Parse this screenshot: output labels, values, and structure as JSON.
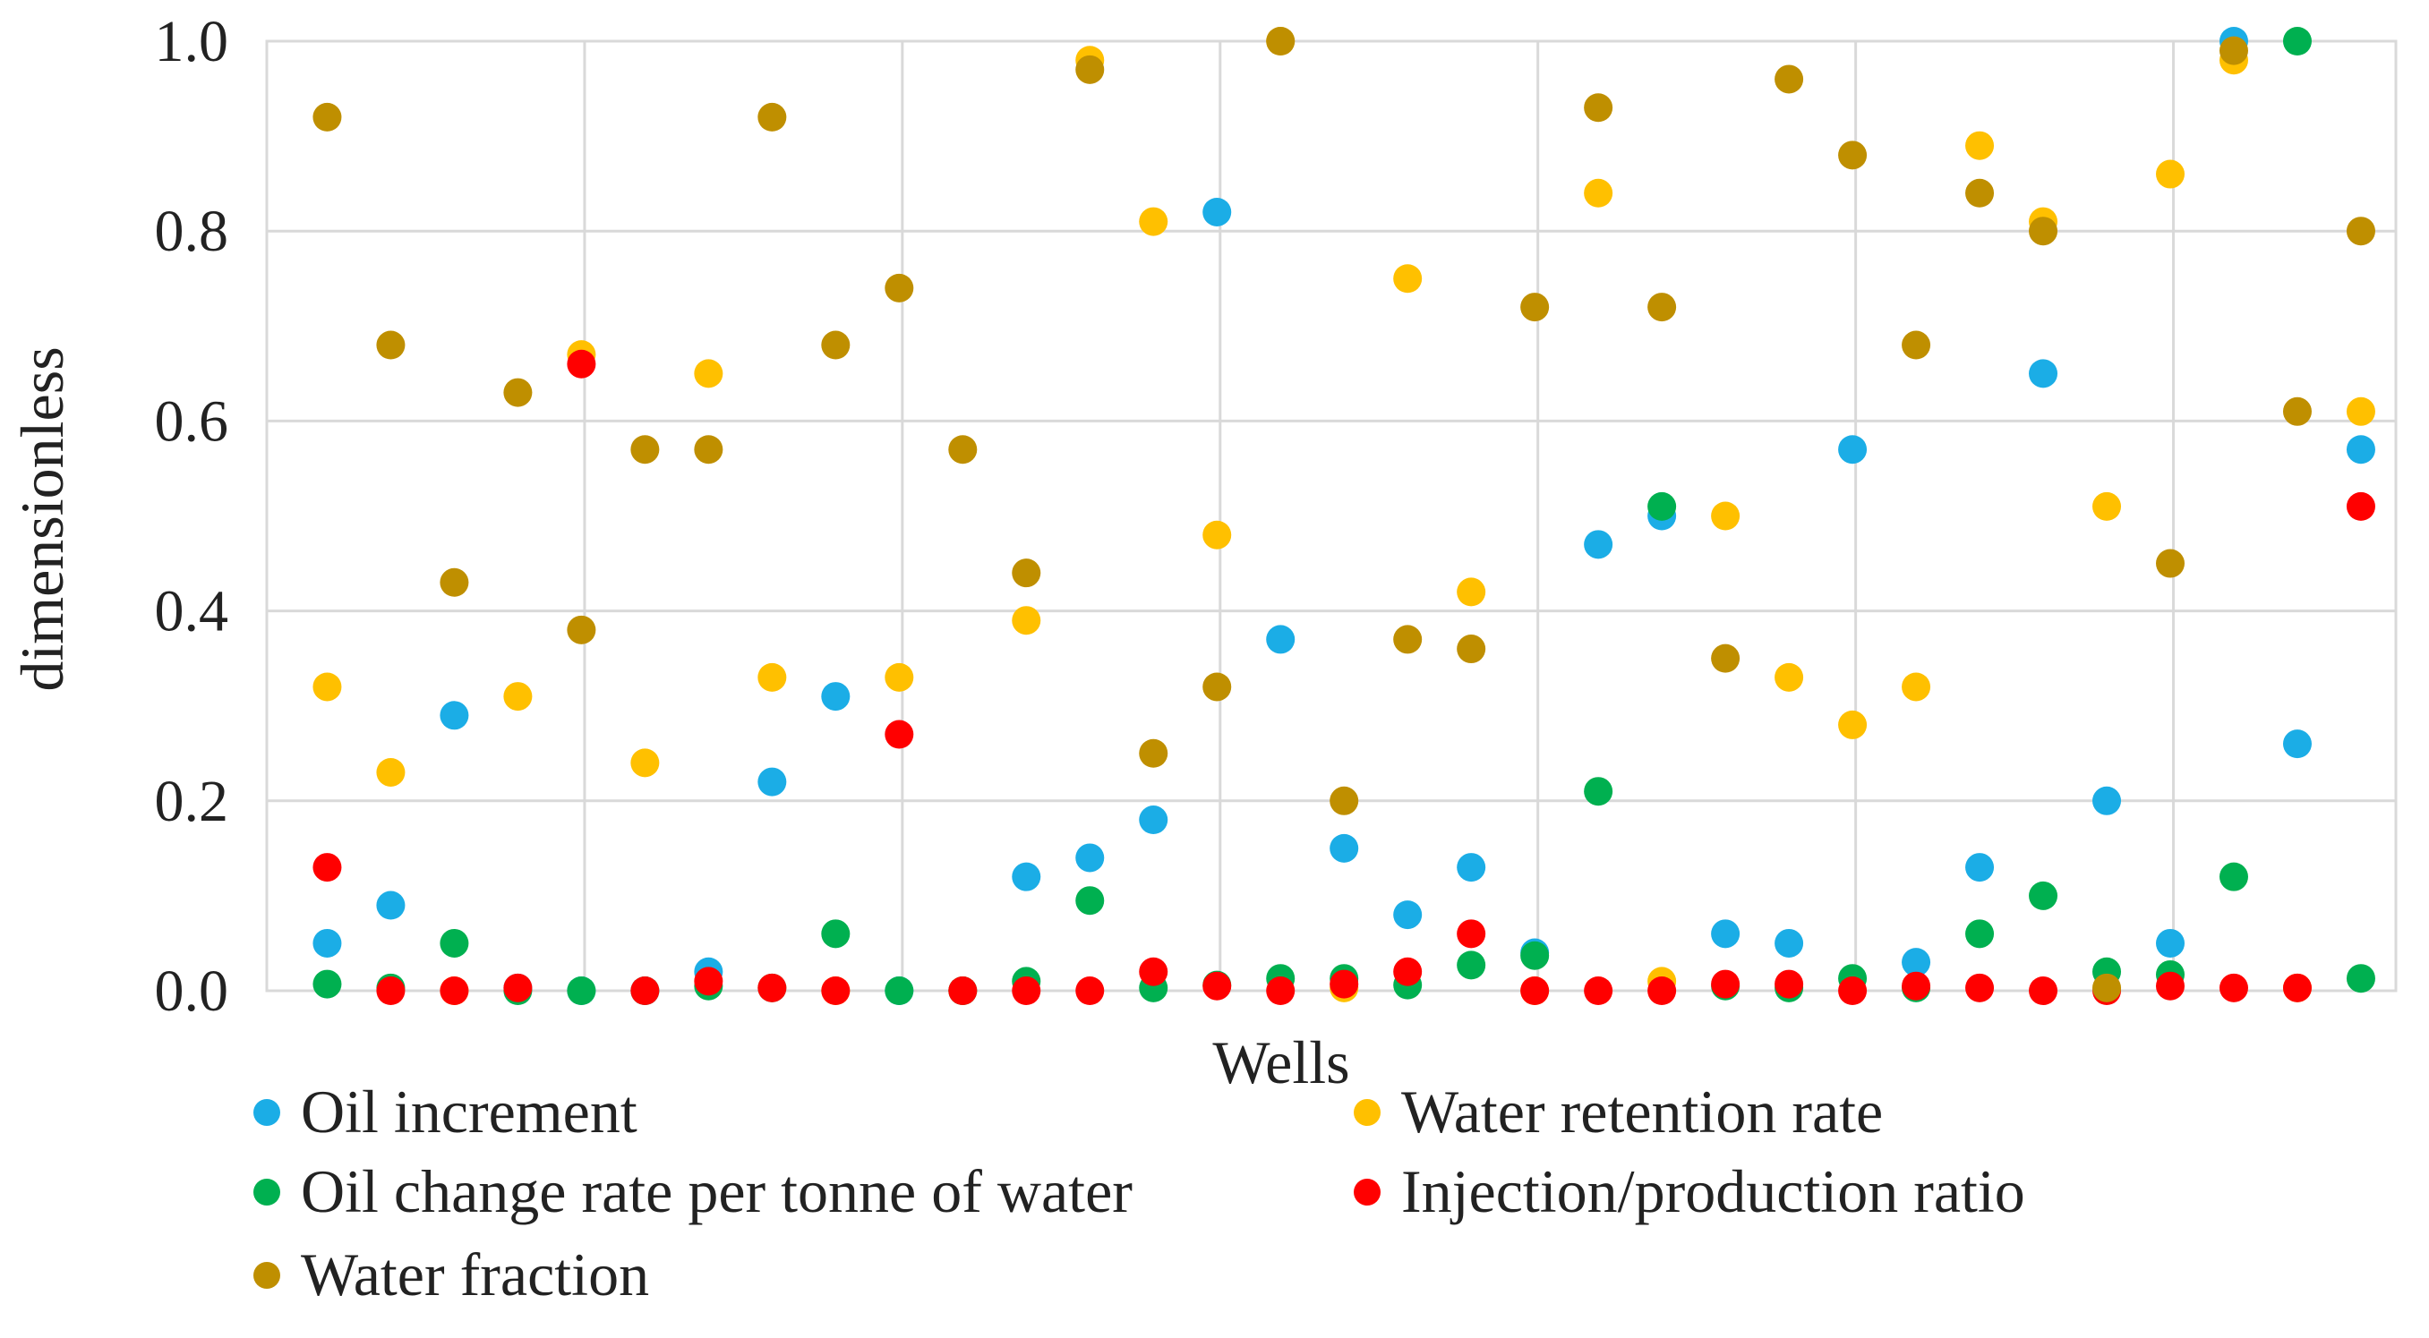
{
  "chart_data": {
    "type": "scatter",
    "title": "",
    "xlabel": "Wells",
    "ylabel": "dimensionless",
    "ylim": [
      0,
      1.0
    ],
    "yticks": [
      "0.0",
      "0.2",
      "0.4",
      "0.6",
      "0.8",
      "1.0"
    ],
    "x": [
      1,
      2,
      3,
      4,
      5,
      6,
      7,
      8,
      9,
      10,
      11,
      12,
      13,
      14,
      15,
      16,
      17,
      18,
      19,
      20,
      21,
      22,
      23,
      24,
      25,
      26,
      27,
      28,
      29,
      30,
      31,
      32,
      33
    ],
    "grid": true,
    "legend_position": "bottom",
    "series": [
      {
        "name": "Oil increment",
        "color": "#1BADE6",
        "values": [
          0.05,
          0.09,
          0.29,
          0.003,
          0.0,
          0.0,
          0.02,
          0.22,
          0.31,
          0.0,
          0.0,
          0.12,
          0.14,
          0.18,
          0.82,
          0.37,
          0.15,
          0.08,
          0.13,
          0.04,
          0.47,
          0.5,
          0.06,
          0.05,
          0.57,
          0.03,
          0.13,
          0.65,
          0.2,
          0.05,
          1.0,
          0.26,
          0.57
        ]
      },
      {
        "name": "Water retention rate",
        "color": "#FFC000",
        "values": [
          0.32,
          0.23,
          0.0,
          0.31,
          0.67,
          0.24,
          0.65,
          0.33,
          0.0,
          0.33,
          0.0,
          0.39,
          0.98,
          0.81,
          0.48,
          1.0,
          0.003,
          0.75,
          0.42,
          0.0,
          0.84,
          0.01,
          0.5,
          0.33,
          0.28,
          0.32,
          0.89,
          0.81,
          0.51,
          0.86,
          0.98,
          0.003,
          0.61
        ]
      },
      {
        "name": "Oil change rate per tonne of water",
        "color": "#00B050",
        "values": [
          0.007,
          0.003,
          0.05,
          0.0,
          0.0,
          0.0,
          0.005,
          0.003,
          0.06,
          0.0,
          0.0,
          0.01,
          0.095,
          0.003,
          0.006,
          0.013,
          0.013,
          0.006,
          0.027,
          0.037,
          0.21,
          0.51,
          0.005,
          0.003,
          0.013,
          0.003,
          0.06,
          0.1,
          0.02,
          0.017,
          0.12,
          1.0,
          0.013
        ]
      },
      {
        "name": "Injection/production ratio",
        "color": "#FF0000",
        "values": [
          0.13,
          0.0,
          0.0,
          0.003,
          0.66,
          0.0,
          0.01,
          0.003,
          0.0,
          0.27,
          0.0,
          0.0,
          0.0,
          0.02,
          0.005,
          0.0,
          0.007,
          0.02,
          0.06,
          0.0,
          0.0,
          0.0,
          0.007,
          0.007,
          0.0,
          0.005,
          0.003,
          0.0,
          0.0,
          0.005,
          0.003,
          0.003,
          0.51
        ]
      },
      {
        "name": "Water fraction",
        "color": "#BF8F00",
        "values": [
          0.92,
          0.68,
          0.43,
          0.63,
          0.38,
          0.57,
          0.57,
          0.92,
          0.68,
          0.74,
          0.57,
          0.44,
          0.97,
          0.25,
          0.32,
          1.0,
          0.2,
          0.37,
          0.36,
          0.72,
          0.93,
          0.72,
          0.35,
          0.96,
          0.88,
          0.68,
          0.84,
          0.8,
          0.003,
          0.45,
          0.99,
          0.61,
          0.8
        ]
      }
    ]
  }
}
